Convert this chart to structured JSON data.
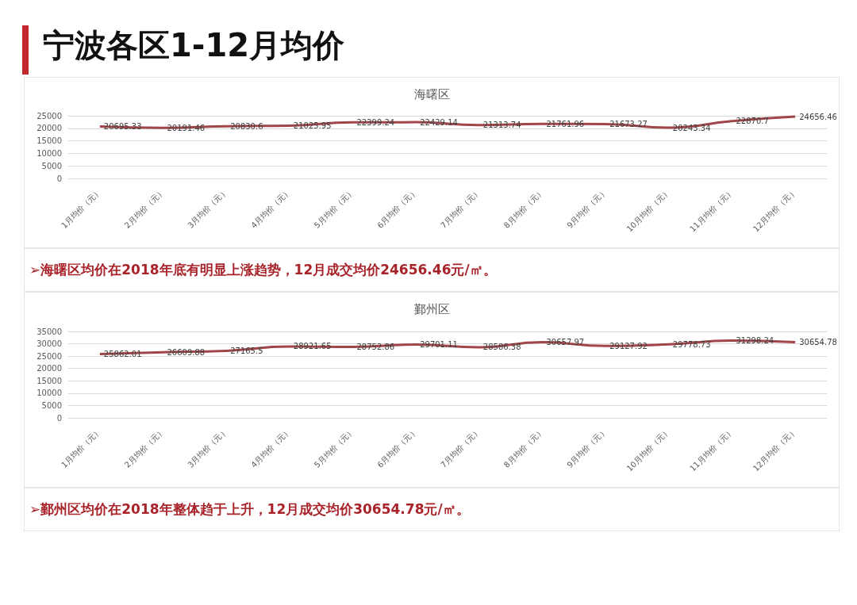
{
  "chart_data": [
    {
      "type": "line",
      "title": "海曙区",
      "annotations": [
        "宁波各区1-12月均价",
        "➢海曙区均价在2018年底有明显上涨趋势，12月成交均价24656.46元/㎡。"
      ],
      "categories": [
        "1月均价（元）",
        "2月均价（元）",
        "3月均价（元）",
        "4月均价（元）",
        "5月均价（元）",
        "6月均价（元）",
        "7月均价（元）",
        "8月均价（元）",
        "9月均价（元）",
        "10月均价（元）",
        "11月均价（元）",
        "12月均价（元）"
      ],
      "series": [
        {
          "color": "#a0464a",
          "values": [
            20695.33,
            20191.46,
            20830.6,
            21025.95,
            22399.24,
            22429.14,
            21313.74,
            21761.96,
            21673.27,
            20243.34,
            22870.7,
            24656.46
          ]
        }
      ],
      "ylim": [
        0,
        25000
      ],
      "yticks": [
        0,
        5000,
        10000,
        15000,
        20000,
        25000
      ],
      "grid": "y",
      "marker": "none",
      "data_labels": true
    },
    {
      "type": "line",
      "title": "鄞州区",
      "annotations": [
        "➢鄞州区均价在2018年整体趋于上升，12月成交均价30654.78元/㎡。"
      ],
      "categories": [
        "1月均价（元）",
        "2月均价（元）",
        "3月均价（元）",
        "4月均价（元）",
        "5月均价（元）",
        "6月均价（元）",
        "7月均价（元）",
        "8月均价（元）",
        "9月均价（元）",
        "10月均价（元）",
        "11月均价（元）",
        "12月均价（元）"
      ],
      "series": [
        {
          "color": "#a0464a",
          "values": [
            25862.01,
            26609.88,
            27165.5,
            28921.65,
            28752.86,
            29701.11,
            28586.38,
            30657.97,
            29127.92,
            29778.73,
            31298.24,
            30654.78
          ]
        }
      ],
      "ylim": [
        0,
        35000
      ],
      "yticks": [
        0,
        5000,
        10000,
        15000,
        20000,
        25000,
        30000,
        35000
      ],
      "grid": "y",
      "marker": "none",
      "data_labels": true
    }
  ]
}
